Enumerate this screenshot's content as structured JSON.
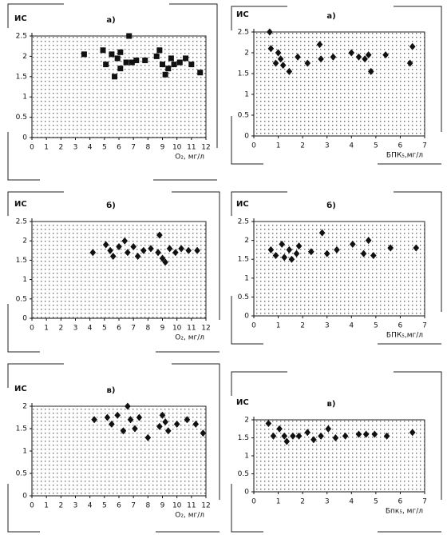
{
  "chart_data": [
    {
      "type": "scatter",
      "label": "а)",
      "ylabel": "ИС",
      "xlabel": "O₂, мг/л",
      "marker": "square",
      "color": "#111111",
      "xlim": [
        0,
        12
      ],
      "xticks": [
        0,
        1,
        2,
        3,
        4,
        5,
        6,
        7,
        8,
        9,
        10,
        11,
        12
      ],
      "ylim": [
        0,
        2.5
      ],
      "yticks": [
        0,
        0.5,
        1,
        1.5,
        2,
        2.5
      ],
      "x": [
        3.6,
        4.9,
        5.1,
        5.5,
        5.9,
        5.7,
        6.1,
        6.1,
        6.7,
        6.5,
        6.9,
        7.2,
        7.8,
        8.6,
        8.8,
        9.0,
        9.2,
        9.4,
        9.6,
        9.8,
        10.2,
        10.6,
        11.0,
        11.6
      ],
      "values": [
        2.05,
        2.15,
        1.8,
        2.05,
        1.95,
        1.5,
        1.7,
        2.1,
        2.5,
        1.85,
        1.85,
        1.9,
        1.9,
        2.0,
        2.15,
        1.8,
        1.55,
        1.7,
        1.95,
        1.8,
        1.85,
        1.95,
        1.8,
        1.6
      ]
    },
    {
      "type": "scatter",
      "label": "а)",
      "ylabel": "ИС",
      "xlabel": "БПК₅,мг/л",
      "marker": "diamond",
      "color": "#111111",
      "xlim": [
        0,
        7
      ],
      "xticks": [
        0,
        1,
        2,
        3,
        4,
        5,
        6,
        7
      ],
      "ylim": [
        0,
        2.5
      ],
      "yticks": [
        0,
        0.5,
        1,
        1.5,
        2,
        2.5
      ],
      "x": [
        0.65,
        0.7,
        1.0,
        0.9,
        1.1,
        1.2,
        1.45,
        1.8,
        2.2,
        2.7,
        2.75,
        3.25,
        4.0,
        4.3,
        4.55,
        4.7,
        4.8,
        5.4,
        6.5,
        6.4
      ],
      "values": [
        2.5,
        2.1,
        2.0,
        1.75,
        1.85,
        1.7,
        1.55,
        1.9,
        1.75,
        2.2,
        1.85,
        1.9,
        2.0,
        1.9,
        1.85,
        1.95,
        1.55,
        1.95,
        2.15,
        1.75
      ]
    },
    {
      "type": "scatter",
      "label": "б)",
      "ylabel": "ИС",
      "xlabel": "O₂, мг/л",
      "marker": "diamond",
      "color": "#111111",
      "xlim": [
        0,
        12
      ],
      "xticks": [
        0,
        1,
        2,
        3,
        4,
        5,
        6,
        7,
        8,
        9,
        10,
        11,
        12
      ],
      "ylim": [
        0,
        2.5
      ],
      "yticks": [
        0,
        0.5,
        1,
        1.5,
        2,
        2.5
      ],
      "x": [
        4.2,
        5.1,
        5.4,
        5.6,
        6.0,
        6.4,
        6.6,
        7.0,
        7.3,
        7.7,
        8.2,
        8.8,
        8.7,
        9.0,
        9.2,
        9.5,
        9.9,
        10.3,
        10.8,
        11.4
      ],
      "values": [
        1.7,
        1.9,
        1.75,
        1.6,
        1.85,
        2.0,
        1.7,
        1.85,
        1.6,
        1.75,
        1.8,
        2.15,
        1.7,
        1.55,
        1.45,
        1.8,
        1.7,
        1.8,
        1.75,
        1.75
      ]
    },
    {
      "type": "scatter",
      "label": "б)",
      "ylabel": "ИС",
      "xlabel": "БПК₅,мг/л",
      "marker": "diamond",
      "color": "#111111",
      "xlim": [
        0,
        7
      ],
      "xticks": [
        0,
        1,
        2,
        3,
        4,
        5,
        6,
        7
      ],
      "ylim": [
        0,
        2.5
      ],
      "yticks": [
        0,
        0.5,
        1,
        1.5,
        2,
        2.5
      ],
      "x": [
        0.7,
        0.9,
        1.15,
        1.25,
        1.45,
        1.55,
        1.75,
        1.85,
        2.35,
        2.8,
        3.0,
        3.4,
        4.05,
        4.5,
        4.7,
        4.9,
        5.6,
        6.65
      ],
      "values": [
        1.75,
        1.6,
        1.9,
        1.55,
        1.75,
        1.5,
        1.65,
        1.85,
        1.7,
        2.2,
        1.65,
        1.75,
        1.9,
        1.65,
        2.0,
        1.6,
        1.8,
        1.8
      ]
    },
    {
      "type": "scatter",
      "label": "в)",
      "ylabel": "ИС",
      "xlabel": "O₂, мг/л",
      "marker": "diamond",
      "color": "#111111",
      "xlim": [
        0,
        12
      ],
      "xticks": [
        0,
        1,
        2,
        3,
        4,
        5,
        6,
        7,
        8,
        9,
        10,
        11,
        12
      ],
      "ylim": [
        0,
        2
      ],
      "yticks": [
        0,
        0.5,
        1,
        1.5,
        2
      ],
      "x": [
        4.3,
        5.2,
        5.5,
        5.9,
        6.3,
        6.6,
        6.8,
        7.1,
        7.4,
        8.0,
        8.8,
        9.0,
        9.2,
        9.4,
        10.0,
        10.7,
        11.3,
        11.8
      ],
      "values": [
        1.7,
        1.75,
        1.6,
        1.8,
        1.45,
        2.0,
        1.7,
        1.5,
        1.75,
        1.3,
        1.55,
        1.8,
        1.65,
        1.45,
        1.6,
        1.7,
        1.6,
        1.4
      ]
    },
    {
      "type": "scatter",
      "label": "в)",
      "ylabel": "ИС",
      "xlabel": "Бпк₅, мг/л",
      "marker": "diamond",
      "color": "#111111",
      "xlim": [
        0,
        7
      ],
      "xticks": [
        0,
        1,
        2,
        3,
        4,
        5,
        6,
        7
      ],
      "ylim": [
        0,
        2
      ],
      "yticks": [
        0,
        0.5,
        1,
        1.5,
        2
      ],
      "x": [
        0.6,
        0.8,
        1.05,
        1.25,
        1.35,
        1.6,
        1.85,
        2.2,
        2.45,
        2.75,
        3.05,
        3.35,
        3.75,
        4.3,
        4.6,
        4.95,
        5.45,
        6.5
      ],
      "values": [
        1.9,
        1.55,
        1.75,
        1.55,
        1.4,
        1.55,
        1.55,
        1.65,
        1.45,
        1.55,
        1.75,
        1.5,
        1.55,
        1.6,
        1.6,
        1.6,
        1.55,
        1.65
      ]
    }
  ]
}
